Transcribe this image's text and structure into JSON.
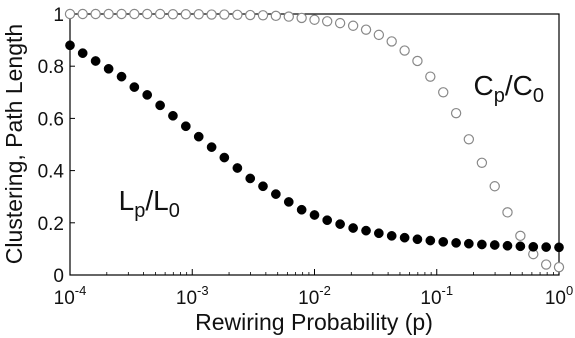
{
  "chart_data": {
    "type": "scatter",
    "title": "",
    "xlabel": "Rewiring Probability (p)",
    "ylabel": "Clustering, Path Length",
    "xscale": "log",
    "xlim": [
      0.0001,
      1
    ],
    "ylim": [
      0,
      1
    ],
    "grid": false,
    "x_ticks": [
      {
        "base": "10",
        "exp": "-4",
        "value": 0.0001
      },
      {
        "base": "10",
        "exp": "-3",
        "value": 0.001
      },
      {
        "base": "10",
        "exp": "-2",
        "value": 0.01
      },
      {
        "base": "10",
        "exp": "-1",
        "value": 0.1
      },
      {
        "base": "10",
        "exp": "0",
        "value": 1
      }
    ],
    "y_ticks": [
      "0",
      "0.2",
      "0.4",
      "0.6",
      "0.8",
      "1"
    ],
    "annotations": {
      "clustering": {
        "main": "C",
        "sub": "p",
        "sep": "/C",
        "sub2": "0",
        "x": 0.2,
        "y": 0.69
      },
      "path_length": {
        "main": "L",
        "sub": "p",
        "sep": "/L",
        "sub2": "0",
        "x": 0.00025,
        "y": 0.25
      }
    },
    "series": [
      {
        "key": "clustering",
        "marker": "open-circle",
        "color": "#888888",
        "x": [
          0.0001,
          0.000127,
          0.000162,
          0.000207,
          0.000264,
          0.000336,
          0.000428,
          0.000546,
          0.000695,
          0.000886,
          0.00113,
          0.00144,
          0.00183,
          0.00234,
          0.00298,
          0.00379,
          0.00483,
          0.00616,
          0.00785,
          0.01,
          0.0127,
          0.0162,
          0.0207,
          0.0264,
          0.0336,
          0.0428,
          0.0546,
          0.0695,
          0.0886,
          0.113,
          0.144,
          0.183,
          0.234,
          0.298,
          0.379,
          0.483,
          0.616,
          0.785,
          1.0
        ],
        "y": [
          1.0,
          1.0,
          1.0,
          1.0,
          1.0,
          1.0,
          1.0,
          1.0,
          0.999,
          0.999,
          0.999,
          0.998,
          0.998,
          0.997,
          0.996,
          0.995,
          0.993,
          0.99,
          0.985,
          0.978,
          0.972,
          0.965,
          0.955,
          0.94,
          0.92,
          0.895,
          0.86,
          0.82,
          0.76,
          0.7,
          0.62,
          0.52,
          0.43,
          0.34,
          0.24,
          0.15,
          0.08,
          0.04,
          0.03
        ]
      },
      {
        "key": "path_length",
        "marker": "filled-circle",
        "color": "#000000",
        "x": [
          0.0001,
          0.000127,
          0.000162,
          0.000207,
          0.000264,
          0.000336,
          0.000428,
          0.000546,
          0.000695,
          0.000886,
          0.00113,
          0.00144,
          0.00183,
          0.00234,
          0.00298,
          0.00379,
          0.00483,
          0.00616,
          0.00785,
          0.01,
          0.0127,
          0.0162,
          0.0207,
          0.0264,
          0.0336,
          0.0428,
          0.0546,
          0.0695,
          0.0886,
          0.113,
          0.144,
          0.183,
          0.234,
          0.298,
          0.379,
          0.483,
          0.616,
          0.785,
          1.0
        ],
        "y": [
          0.88,
          0.85,
          0.82,
          0.79,
          0.76,
          0.72,
          0.69,
          0.65,
          0.61,
          0.57,
          0.53,
          0.49,
          0.45,
          0.41,
          0.37,
          0.34,
          0.31,
          0.28,
          0.25,
          0.23,
          0.21,
          0.195,
          0.18,
          0.17,
          0.16,
          0.15,
          0.143,
          0.137,
          0.132,
          0.127,
          0.123,
          0.12,
          0.117,
          0.115,
          0.112,
          0.11,
          0.108,
          0.107,
          0.106
        ]
      }
    ]
  }
}
